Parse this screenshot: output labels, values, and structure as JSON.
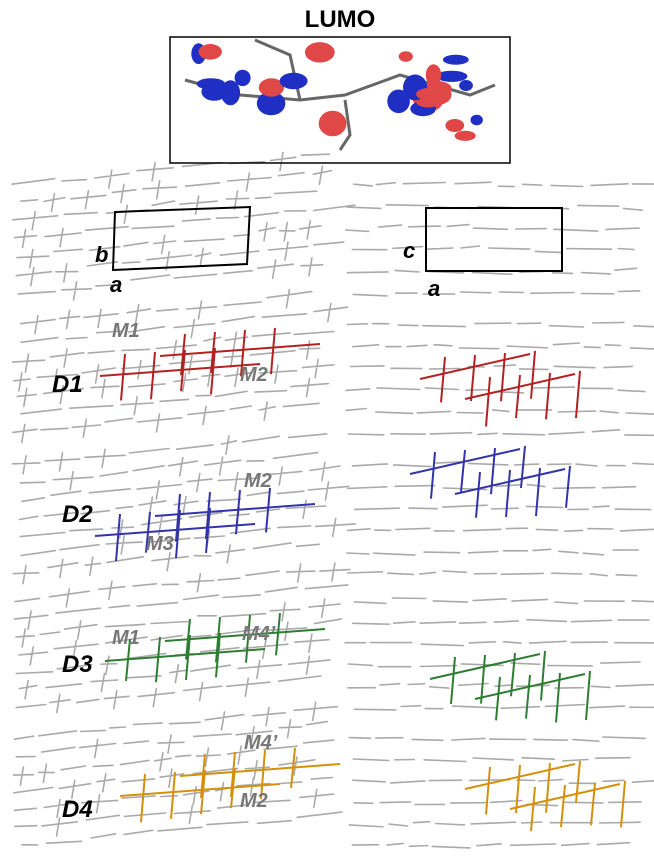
{
  "figure": {
    "title": "LUMO",
    "cell_labels": {
      "left": {
        "b": "b",
        "a": "a"
      },
      "right": {
        "c": "c",
        "a": "a"
      }
    },
    "dimers": [
      {
        "label": "D1",
        "molecules": [
          "M1",
          "M2"
        ]
      },
      {
        "label": "D2",
        "molecules": [
          "M2",
          "M3"
        ]
      },
      {
        "label": "D3",
        "molecules": [
          "M1",
          "M4’"
        ]
      },
      {
        "label": "D4",
        "molecules": [
          "M4’",
          "M2"
        ]
      }
    ]
  }
}
